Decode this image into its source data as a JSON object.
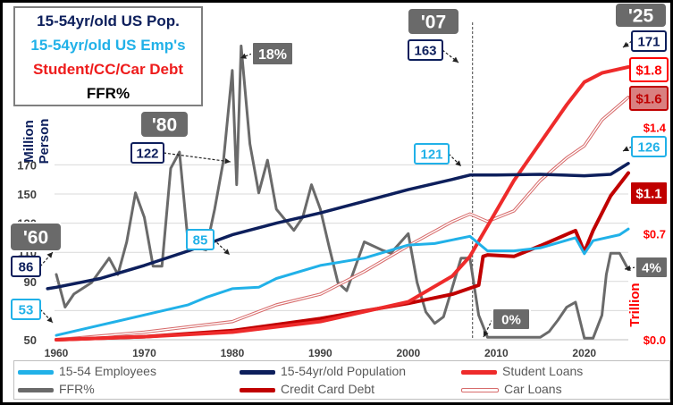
{
  "title_box": {
    "line1": "15-54yr/old US Pop.",
    "line2": "15-54yr/old US Emp's",
    "line3": "Student/CC/Car Debt",
    "line4": "FFR%"
  },
  "colors": {
    "population": "#0d1f5c",
    "employees": "#21b1e8",
    "student_loans": "#ee2b2b",
    "credit_card": "#c00000",
    "car_loans": "#d76b6b",
    "ffr": "#6a6a6a",
    "gridline": "#d9d9d9",
    "left_axis_text": "#404040",
    "right_axis_text": "#ff0000"
  },
  "chart_data": {
    "type": "line",
    "x_range": [
      1960,
      2025
    ],
    "x_ticks": [
      "1960",
      "1970",
      "1980",
      "1990",
      "2000",
      "2010",
      "2020"
    ],
    "left_axis": {
      "label": "Million Person",
      "range": [
        50,
        180
      ],
      "ticks": [
        "50",
        "70",
        "90",
        "110",
        "130",
        "150",
        "170"
      ]
    },
    "right_axis": {
      "label": "Trillion",
      "ticks": [
        "$0.0",
        "$0.7",
        "$1.4"
      ],
      "range_trillions": [
        0,
        2.1
      ]
    },
    "ffr_scale": {
      "axis": "ffr_percent",
      "range": [
        0,
        19.5
      ]
    },
    "grid": true,
    "legend_position": "bottom",
    "series": [
      {
        "name": "15-54yr/old Population",
        "axis": "left",
        "points": [
          [
            1959,
            85
          ],
          [
            1960,
            86
          ],
          [
            1965,
            92
          ],
          [
            1970,
            101
          ],
          [
            1975,
            111
          ],
          [
            1980,
            122
          ],
          [
            1985,
            130
          ],
          [
            1990,
            137
          ],
          [
            1995,
            145
          ],
          [
            2000,
            153
          ],
          [
            2005,
            160
          ],
          [
            2007,
            163
          ],
          [
            2010,
            163
          ],
          [
            2015,
            163.5
          ],
          [
            2020,
            162.5
          ],
          [
            2023,
            163.5
          ],
          [
            2025,
            171
          ]
        ]
      },
      {
        "name": "15-54 Employees",
        "axis": "left",
        "points": [
          [
            1960,
            53
          ],
          [
            1965,
            60
          ],
          [
            1970,
            67
          ],
          [
            1975,
            74
          ],
          [
            1977,
            79
          ],
          [
            1980,
            85
          ],
          [
            1983,
            86
          ],
          [
            1985,
            92
          ],
          [
            1990,
            101
          ],
          [
            1995,
            106
          ],
          [
            2000,
            115
          ],
          [
            2003,
            116
          ],
          [
            2007,
            121
          ],
          [
            2009,
            111
          ],
          [
            2012,
            111
          ],
          [
            2015,
            113
          ],
          [
            2019,
            120
          ],
          [
            2020,
            109
          ],
          [
            2021,
            118
          ],
          [
            2024,
            122
          ],
          [
            2025,
            126
          ]
        ]
      },
      {
        "name": "Student Loans",
        "axis": "right",
        "points": [
          [
            1960,
            0.0
          ],
          [
            1970,
            0.02
          ],
          [
            1980,
            0.05
          ],
          [
            1990,
            0.12
          ],
          [
            2000,
            0.25
          ],
          [
            2005,
            0.42
          ],
          [
            2007,
            0.55
          ],
          [
            2008,
            0.65
          ],
          [
            2010,
            0.85
          ],
          [
            2012,
            1.05
          ],
          [
            2015,
            1.3
          ],
          [
            2018,
            1.55
          ],
          [
            2020,
            1.7
          ],
          [
            2022,
            1.76
          ],
          [
            2025,
            1.8
          ]
        ]
      },
      {
        "name": "Credit Card Debt",
        "axis": "right",
        "points": [
          [
            1960,
            0.0
          ],
          [
            1970,
            0.02
          ],
          [
            1980,
            0.06
          ],
          [
            1990,
            0.14
          ],
          [
            2000,
            0.24
          ],
          [
            2005,
            0.3
          ],
          [
            2007,
            0.34
          ],
          [
            2008,
            0.36
          ],
          [
            2008.5,
            0.55
          ],
          [
            2009,
            0.56
          ],
          [
            2012,
            0.55
          ],
          [
            2015,
            0.62
          ],
          [
            2019,
            0.72
          ],
          [
            2020,
            0.58
          ],
          [
            2021,
            0.72
          ],
          [
            2023,
            0.95
          ],
          [
            2025,
            1.1
          ]
        ]
      },
      {
        "name": "Car Loans",
        "axis": "right",
        "points": [
          [
            1960,
            0.0
          ],
          [
            1970,
            0.05
          ],
          [
            1980,
            0.12
          ],
          [
            1985,
            0.23
          ],
          [
            1990,
            0.3
          ],
          [
            1995,
            0.45
          ],
          [
            2000,
            0.62
          ],
          [
            2005,
            0.78
          ],
          [
            2007,
            0.83
          ],
          [
            2009,
            0.78
          ],
          [
            2012,
            0.85
          ],
          [
            2015,
            1.05
          ],
          [
            2018,
            1.2
          ],
          [
            2020,
            1.28
          ],
          [
            2022,
            1.45
          ],
          [
            2025,
            1.6
          ]
        ]
      },
      {
        "name": "FFR%",
        "axis": "ffr",
        "points": [
          [
            1960,
            4.0
          ],
          [
            1961,
            2.0
          ],
          [
            1962,
            2.8
          ],
          [
            1964,
            3.5
          ],
          [
            1966,
            5.0
          ],
          [
            1967,
            4.0
          ],
          [
            1968,
            6.0
          ],
          [
            1969,
            9.0
          ],
          [
            1970,
            7.5
          ],
          [
            1971,
            4.5
          ],
          [
            1972,
            4.5
          ],
          [
            1973,
            10.5
          ],
          [
            1974,
            11.5
          ],
          [
            1975,
            5.8
          ],
          [
            1977,
            5.5
          ],
          [
            1978,
            8.0
          ],
          [
            1979,
            11.0
          ],
          [
            1980,
            16.5
          ],
          [
            1980.5,
            9.5
          ],
          [
            1981,
            18.0
          ],
          [
            1982,
            12.0
          ],
          [
            1983,
            9.0
          ],
          [
            1984,
            11.0
          ],
          [
            1985,
            8.0
          ],
          [
            1987,
            6.7
          ],
          [
            1988,
            7.5
          ],
          [
            1989,
            9.5
          ],
          [
            1990,
            8.0
          ],
          [
            1991,
            5.7
          ],
          [
            1992,
            3.5
          ],
          [
            1993,
            3.0
          ],
          [
            1994,
            4.5
          ],
          [
            1995,
            6.0
          ],
          [
            1997,
            5.5
          ],
          [
            1998,
            5.3
          ],
          [
            2000,
            6.5
          ],
          [
            2001,
            3.5
          ],
          [
            2002,
            1.7
          ],
          [
            2003,
            1.0
          ],
          [
            2004,
            1.4
          ],
          [
            2005,
            3.2
          ],
          [
            2006,
            5.0
          ],
          [
            2007,
            5.0
          ],
          [
            2008,
            1.5
          ],
          [
            2009,
            0.15
          ],
          [
            2015,
            0.15
          ],
          [
            2016,
            0.5
          ],
          [
            2017,
            1.2
          ],
          [
            2018,
            2.0
          ],
          [
            2019,
            2.3
          ],
          [
            2020,
            0.1
          ],
          [
            2021,
            0.1
          ],
          [
            2022,
            1.5
          ],
          [
            2022.5,
            4.0
          ],
          [
            2023,
            5.3
          ],
          [
            2024,
            5.3
          ],
          [
            2025,
            4.3
          ]
        ]
      }
    ],
    "callouts": [
      {
        "id": "pop-1960",
        "text": "86",
        "style": "navy"
      },
      {
        "id": "emp-1960",
        "text": "53",
        "style": "cyan"
      },
      {
        "id": "year-1960",
        "text": "'60",
        "style": "gray"
      },
      {
        "id": "pop-1980",
        "text": "122",
        "style": "navy"
      },
      {
        "id": "emp-1980",
        "text": "85",
        "style": "cyan"
      },
      {
        "id": "year-1980",
        "text": "'80",
        "style": "gray"
      },
      {
        "id": "ffr-peak",
        "text": "18%",
        "style": "gray"
      },
      {
        "id": "pop-2007",
        "text": "163",
        "style": "navy"
      },
      {
        "id": "emp-2007",
        "text": "121",
        "style": "cyan"
      },
      {
        "id": "year-2007",
        "text": "'07",
        "style": "gray"
      },
      {
        "id": "ffr-zero",
        "text": "0%",
        "style": "gray"
      },
      {
        "id": "pop-2025",
        "text": "171",
        "style": "navy"
      },
      {
        "id": "emp-2025",
        "text": "126",
        "style": "cyan"
      },
      {
        "id": "year-2025",
        "text": "'25",
        "style": "gray"
      },
      {
        "id": "ffr-2025",
        "text": "4%",
        "style": "gray"
      },
      {
        "id": "student-2025",
        "text": "$1.8",
        "style": "red"
      },
      {
        "id": "car-2025",
        "text": "$1.6",
        "style": "rose"
      },
      {
        "id": "cc-2025",
        "text": "$1.1",
        "style": "darkred"
      }
    ]
  },
  "legend": {
    "employees": "15-54 Employees",
    "population": "15-54yr/old Population",
    "student_loans": "Student Loans",
    "ffr": "FFR%",
    "credit_card": "Credit Card Debt",
    "car_loans": "Car Loans"
  }
}
